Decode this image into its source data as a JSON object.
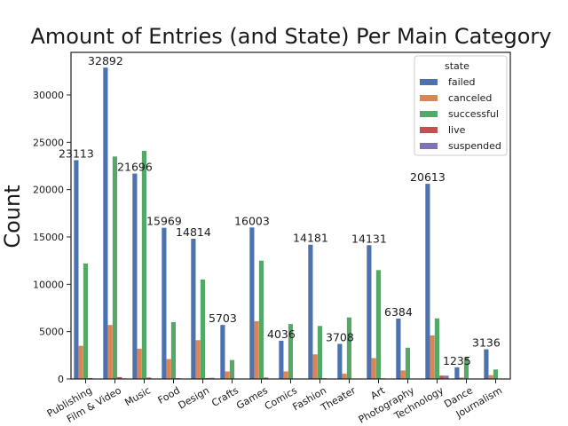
{
  "chart_data": {
    "type": "bar",
    "title": "Amount of Entries (and State) Per Main Category",
    "xlabel": "",
    "ylabel": "Count",
    "ylim": [
      0,
      34500
    ],
    "yticks": [
      0,
      5000,
      10000,
      15000,
      20000,
      25000,
      30000
    ],
    "grid": false,
    "legend": {
      "title": "state",
      "placement": "top-right"
    },
    "categories": [
      "Publishing",
      "Film & Video",
      "Music",
      "Food",
      "Design",
      "Crafts",
      "Games",
      "Comics",
      "Fashion",
      "Theater",
      "Art",
      "Photography",
      "Technology",
      "Dance",
      "Journalism"
    ],
    "series": [
      {
        "name": "failed",
        "color": "#4c72b0",
        "values": [
          23113,
          32892,
          21696,
          15969,
          14814,
          5703,
          16003,
          4036,
          14181,
          3708,
          14131,
          6384,
          20613,
          1235,
          3136
        ]
      },
      {
        "name": "canceled",
        "color": "#dd8452",
        "values": [
          3500,
          5700,
          3200,
          2100,
          4100,
          800,
          6100,
          800,
          2600,
          550,
          2200,
          900,
          4600,
          150,
          400
        ]
      },
      {
        "name": "successful",
        "color": "#55a868",
        "values": [
          12200,
          23500,
          24100,
          6000,
          10500,
          2000,
          12500,
          5800,
          5600,
          6500,
          11500,
          3300,
          6400,
          2300,
          1000
        ]
      },
      {
        "name": "live",
        "color": "#c44e52",
        "values": [
          100,
          200,
          150,
          80,
          100,
          30,
          150,
          50,
          80,
          40,
          70,
          30,
          350,
          20,
          20
        ]
      },
      {
        "name": "suspended",
        "color": "#8172b3",
        "values": [
          30,
          60,
          40,
          20,
          120,
          10,
          50,
          10,
          20,
          10,
          20,
          10,
          350,
          5,
          5
        ]
      }
    ],
    "data_labels": [
      23113,
      32892,
      21696,
      15969,
      14814,
      5703,
      16003,
      4036,
      14181,
      3708,
      14131,
      6384,
      20613,
      1235,
      3136
    ]
  }
}
